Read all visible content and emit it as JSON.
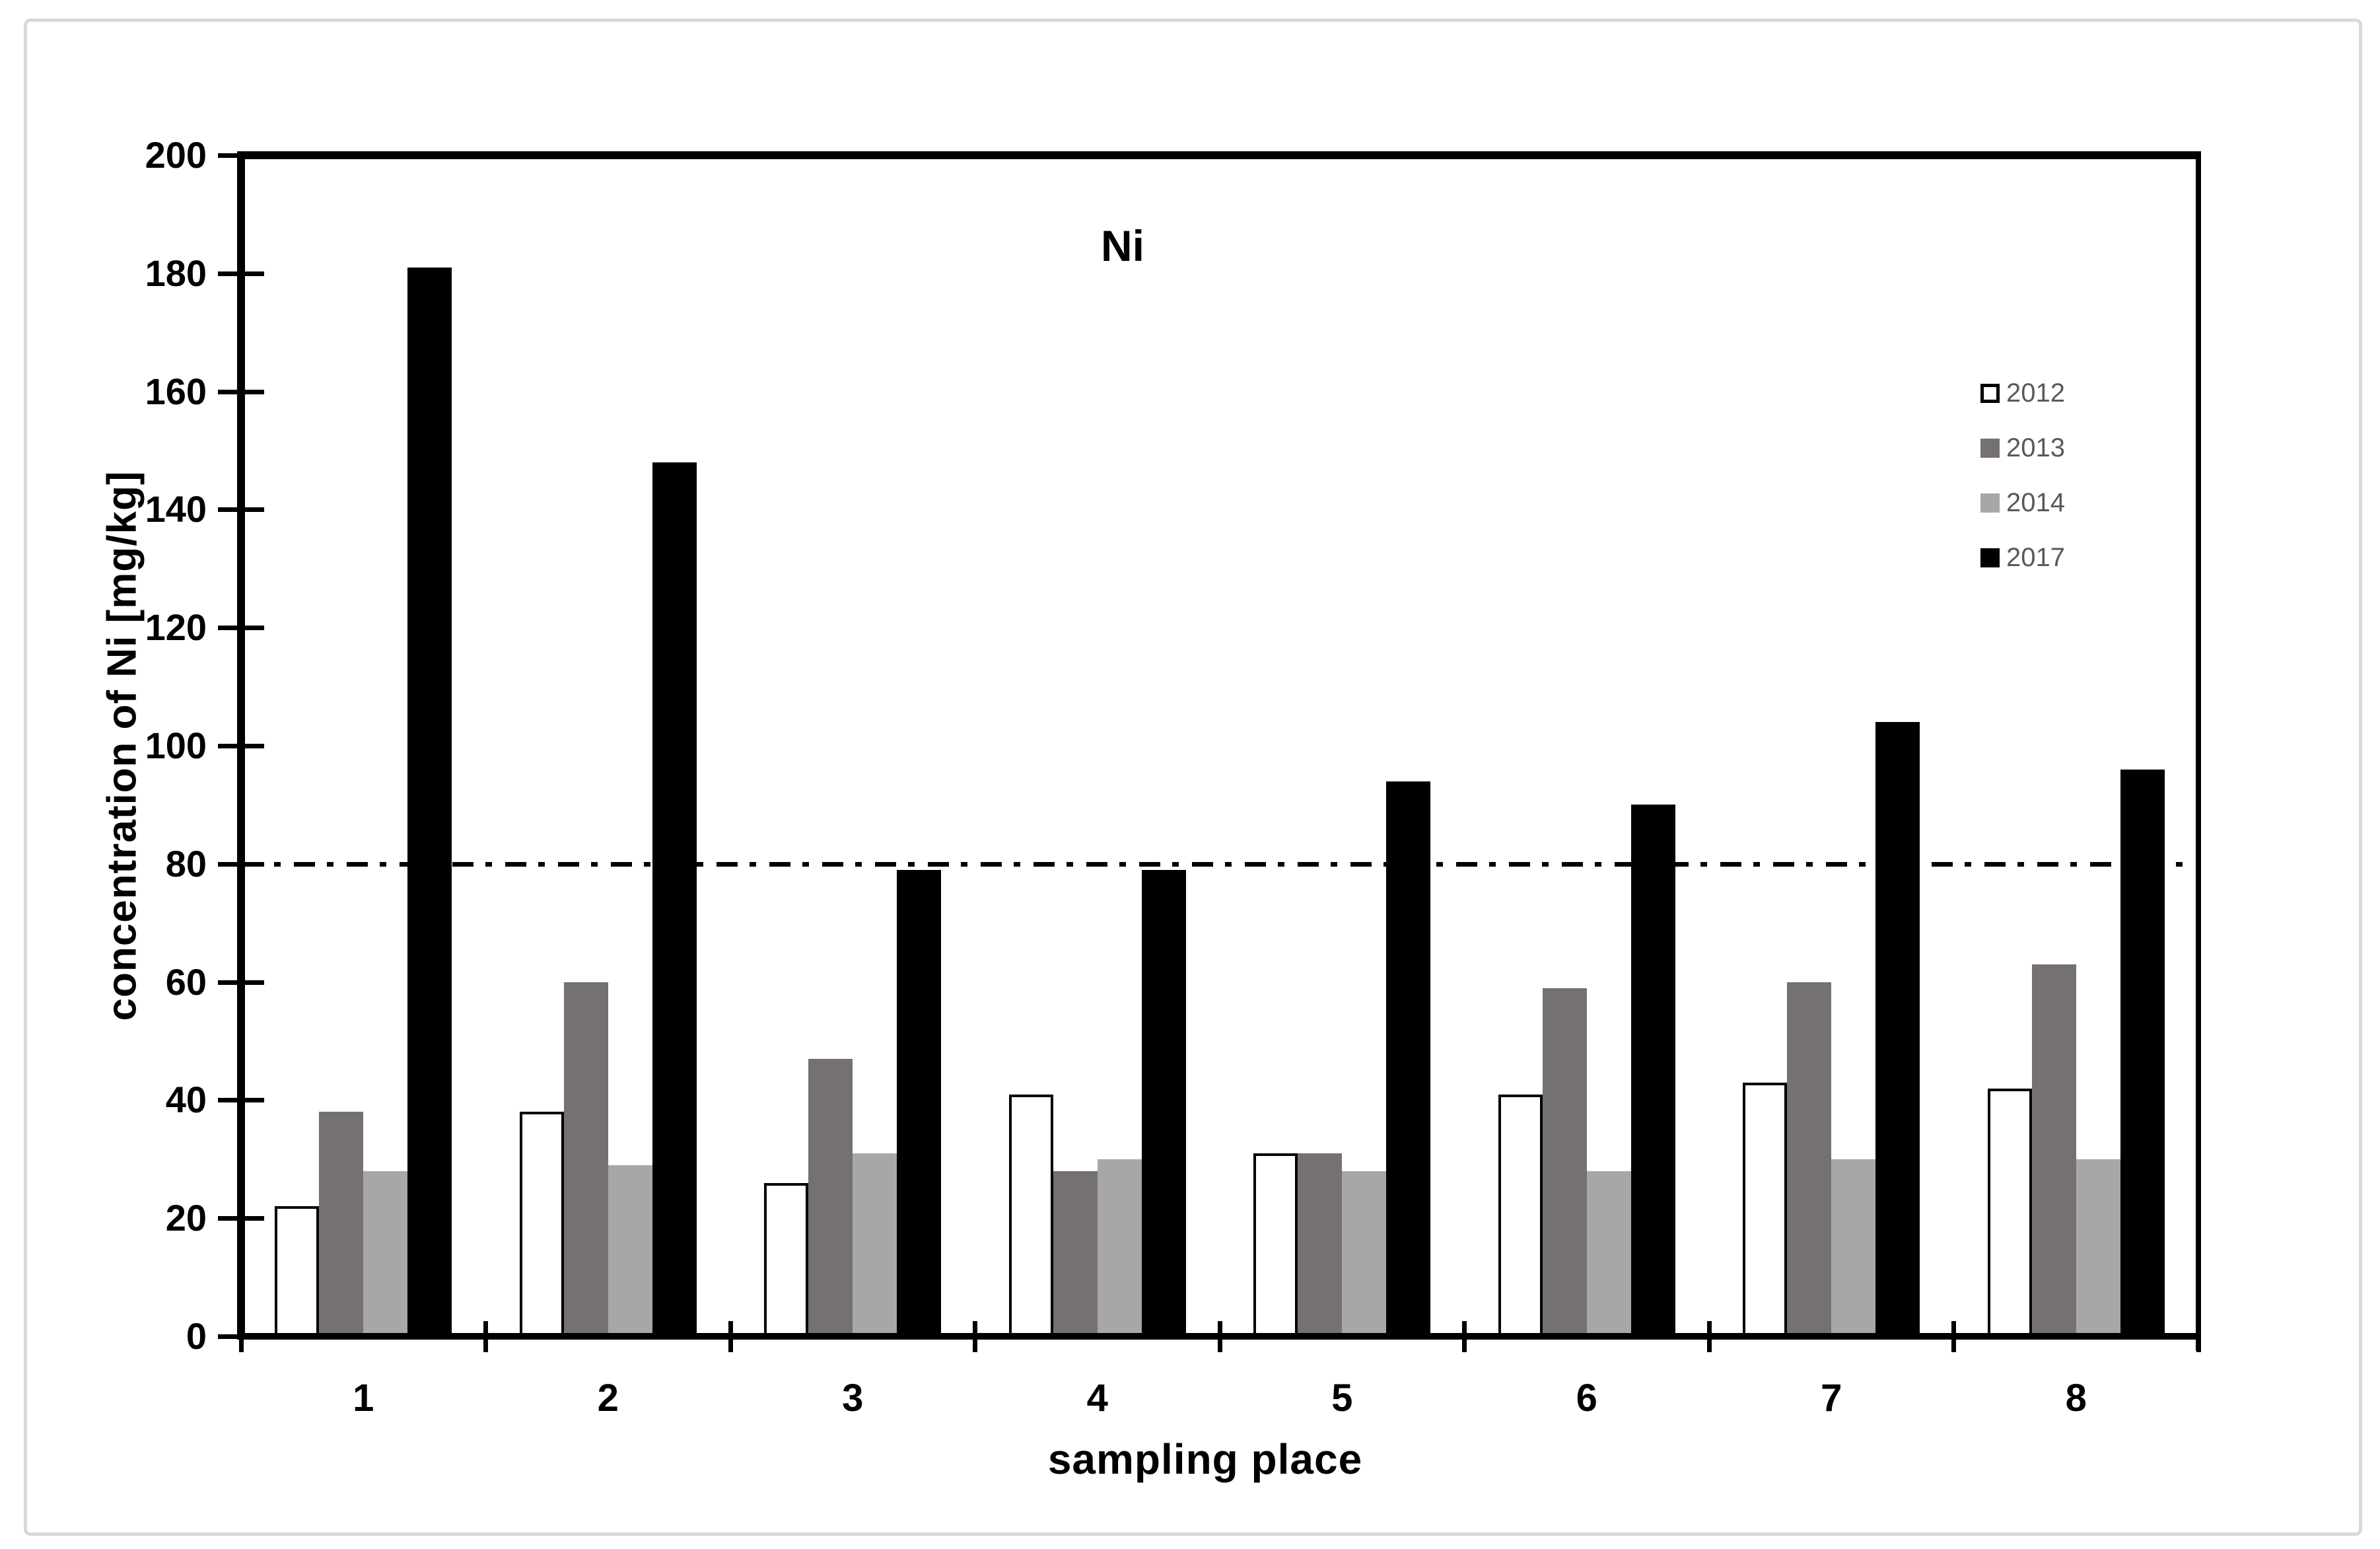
{
  "chart_data": {
    "type": "bar",
    "title": "Ni",
    "xlabel": "sampling place",
    "ylabel": "concentration of Ni [mg/kg]",
    "categories": [
      "1",
      "2",
      "3",
      "4",
      "5",
      "6",
      "7",
      "8"
    ],
    "series": [
      {
        "name": "2012",
        "fill": "#ffffff",
        "stroke": "#000000",
        "values": [
          22,
          38,
          26,
          41,
          31,
          41,
          43,
          42
        ]
      },
      {
        "name": "2013",
        "fill": "#757171",
        "stroke": null,
        "values": [
          38,
          60,
          47,
          28,
          31,
          59,
          60,
          63
        ]
      },
      {
        "name": "2014",
        "fill": "#a8a7a7",
        "stroke": null,
        "values": [
          28,
          29,
          31,
          30,
          28,
          28,
          30,
          30
        ]
      },
      {
        "name": "2017",
        "fill": "#000000",
        "stroke": null,
        "values": [
          181,
          148,
          79,
          79,
          94,
          90,
          104,
          96
        ]
      }
    ],
    "ylim": [
      0,
      200
    ],
    "yticks": [
      0,
      20,
      40,
      60,
      80,
      100,
      120,
      140,
      160,
      180,
      200
    ],
    "reference_line": {
      "value": 80,
      "style": "dash-dot",
      "color": "#000000"
    },
    "legend": {
      "position": "upper-right",
      "entries": [
        "2012",
        "2013",
        "2014",
        "2017"
      ],
      "text_color": "#595959"
    },
    "grid": false,
    "axis_color": "#000000",
    "figure_border_color": "#d9d9d9"
  }
}
